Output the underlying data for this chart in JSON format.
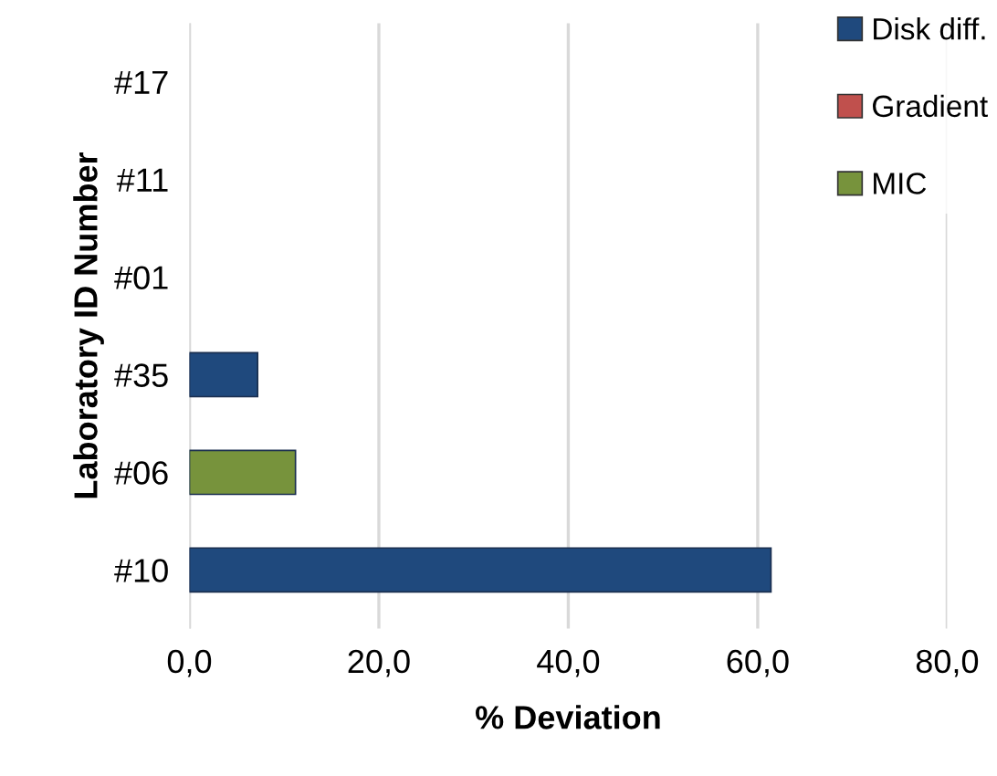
{
  "chart_data": {
    "type": "bar",
    "orientation": "horizontal",
    "xlabel": "% Deviation",
    "ylabel": "Laboratory ID Number",
    "categories": [
      "#17",
      "#11",
      "#01",
      "#35",
      "#06",
      "#10"
    ],
    "series": [
      {
        "name": "Disk diff.",
        "color": "#1f497d",
        "values": [
          null,
          null,
          null,
          7.2,
          null,
          61.4
        ]
      },
      {
        "name": "Gradient",
        "color": "#c0504d",
        "values": [
          null,
          null,
          null,
          null,
          null,
          null
        ]
      },
      {
        "name": "MIC",
        "color": "#77933c",
        "values": [
          null,
          null,
          null,
          null,
          11.2,
          null
        ]
      }
    ],
    "xlim": [
      0,
      80
    ],
    "xticks": [
      {
        "value": 0,
        "label": "0,0"
      },
      {
        "value": 20,
        "label": "20,0"
      },
      {
        "value": 40,
        "label": "40,0"
      },
      {
        "value": 60,
        "label": "60,0"
      },
      {
        "value": 80,
        "label": "80,0"
      }
    ],
    "grid": "x",
    "legend": "top right"
  }
}
